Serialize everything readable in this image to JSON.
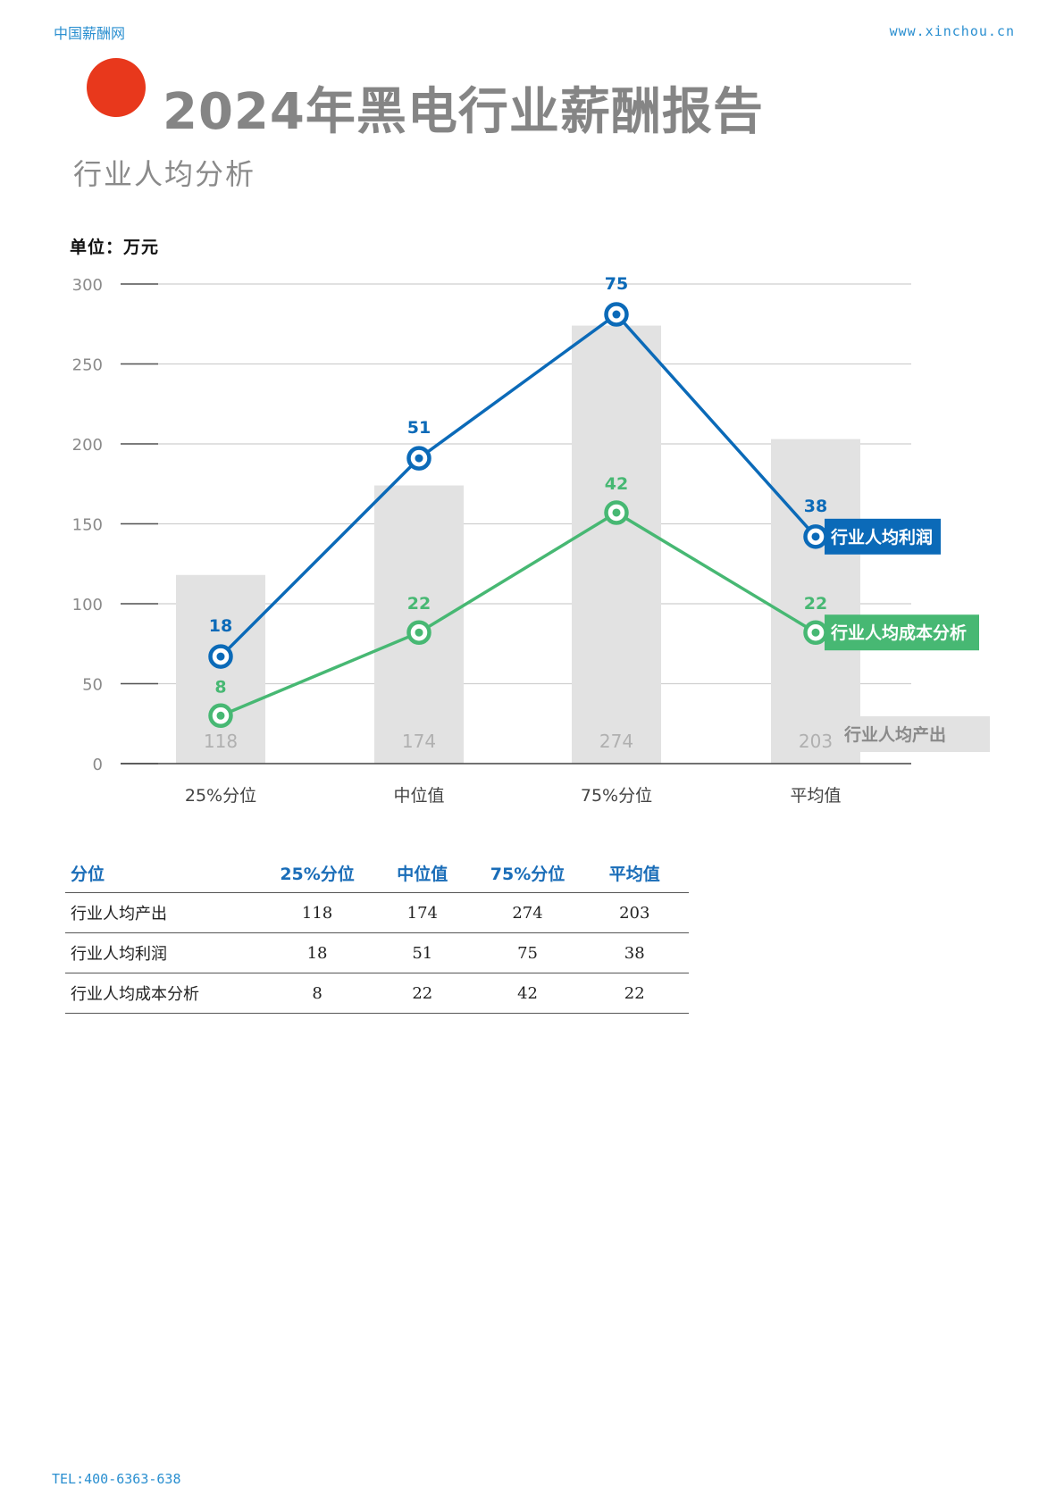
{
  "header": {
    "site_name": "中国薪酬网",
    "site_url": "www.xinchou.cn"
  },
  "title": "2024年黑电行业薪酬报告",
  "subtitle": "行业人均分析",
  "unit_label": "单位：万元",
  "colors": {
    "bar": "#e2e2e2",
    "profit": "#0b6ab8",
    "cost": "#47b873",
    "accent_dot": "#e8381c"
  },
  "chart_data": {
    "type": "bar",
    "categories": [
      "25%分位",
      "中位值",
      "75%分位",
      "平均值"
    ],
    "ylim": [
      0,
      300
    ],
    "yticks": [
      0,
      50,
      100,
      150,
      200,
      250,
      300
    ],
    "grid": true,
    "series": [
      {
        "name": "行业人均产出",
        "kind": "bar",
        "values": [
          118,
          174,
          274,
          203
        ]
      },
      {
        "name": "行业人均利润",
        "kind": "line",
        "values": [
          18,
          51,
          75,
          38
        ],
        "plot_values": [
          67,
          191,
          281,
          142
        ]
      },
      {
        "name": "行业人均成本分析",
        "kind": "line",
        "values": [
          8,
          22,
          42,
          22
        ],
        "plot_values": [
          30,
          82,
          157,
          82
        ]
      }
    ]
  },
  "table": {
    "headers": [
      "分位",
      "25%分位",
      "中位值",
      "75%分位",
      "平均值"
    ],
    "rows": [
      [
        "行业人均产出",
        "118",
        "174",
        "274",
        "203"
      ],
      [
        "行业人均利润",
        "18",
        "51",
        "75",
        "38"
      ],
      [
        "行业人均成本分析",
        "8",
        "22",
        "42",
        "22"
      ]
    ]
  },
  "footer": {
    "tel": "TEL:400-6363-638"
  }
}
